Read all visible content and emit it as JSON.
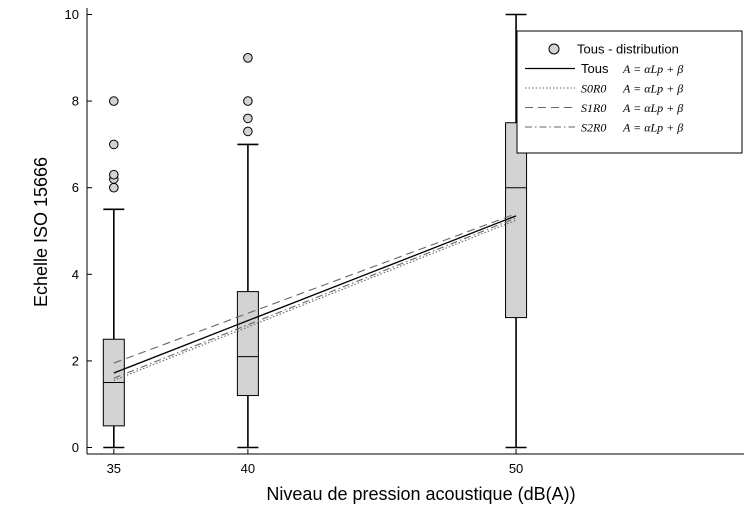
{
  "chart_data": {
    "type": "box",
    "title": "",
    "xlabel": "Niveau de pression acoustique (dB(A))",
    "ylabel": "Echelle ISO 15666",
    "xlim": [
      34,
      58.5
    ],
    "ylim": [
      -0.15,
      10.15
    ],
    "xticks": [
      35,
      40,
      50
    ],
    "yticks": [
      0,
      2,
      4,
      6,
      8,
      10
    ],
    "grid": false,
    "legend_position": "top-right",
    "boxes": [
      {
        "x": 35,
        "whisker_low": 0,
        "q1": 0.5,
        "median": 1.5,
        "q3": 2.5,
        "whisker_high": 5.5,
        "outliers": [
          6.0,
          6.2,
          6.3,
          7.0,
          8.0
        ]
      },
      {
        "x": 40,
        "whisker_low": 0,
        "q1": 1.2,
        "median": 2.1,
        "q3": 3.6,
        "whisker_high": 7.0,
        "outliers": [
          7.3,
          7.6,
          8.0,
          9.0
        ]
      },
      {
        "x": 50,
        "whisker_low": 0,
        "q1": 3.0,
        "median": 6.0,
        "q3": 7.5,
        "whisker_high": 10.0,
        "outliers": []
      }
    ],
    "series": [
      {
        "name": "Tous",
        "formula": "A = αLp + β",
        "style": "solid",
        "x": [
          35,
          50
        ],
        "y": [
          1.72,
          5.35
        ]
      },
      {
        "name": "S0R0",
        "formula": "A = αLp + β",
        "style": "dotted",
        "x": [
          35,
          50
        ],
        "y": [
          1.55,
          5.25
        ]
      },
      {
        "name": "S1R0",
        "formula": "A = αLp + β",
        "style": "dashed",
        "x": [
          35,
          50
        ],
        "y": [
          1.95,
          5.4
        ]
      },
      {
        "name": "S2R0",
        "formula": "A = αLp + β",
        "style": "dashdot",
        "x": [
          35,
          50
        ],
        "y": [
          1.6,
          5.3
        ]
      }
    ],
    "legend": {
      "box_label": "Tous - distribution"
    }
  }
}
